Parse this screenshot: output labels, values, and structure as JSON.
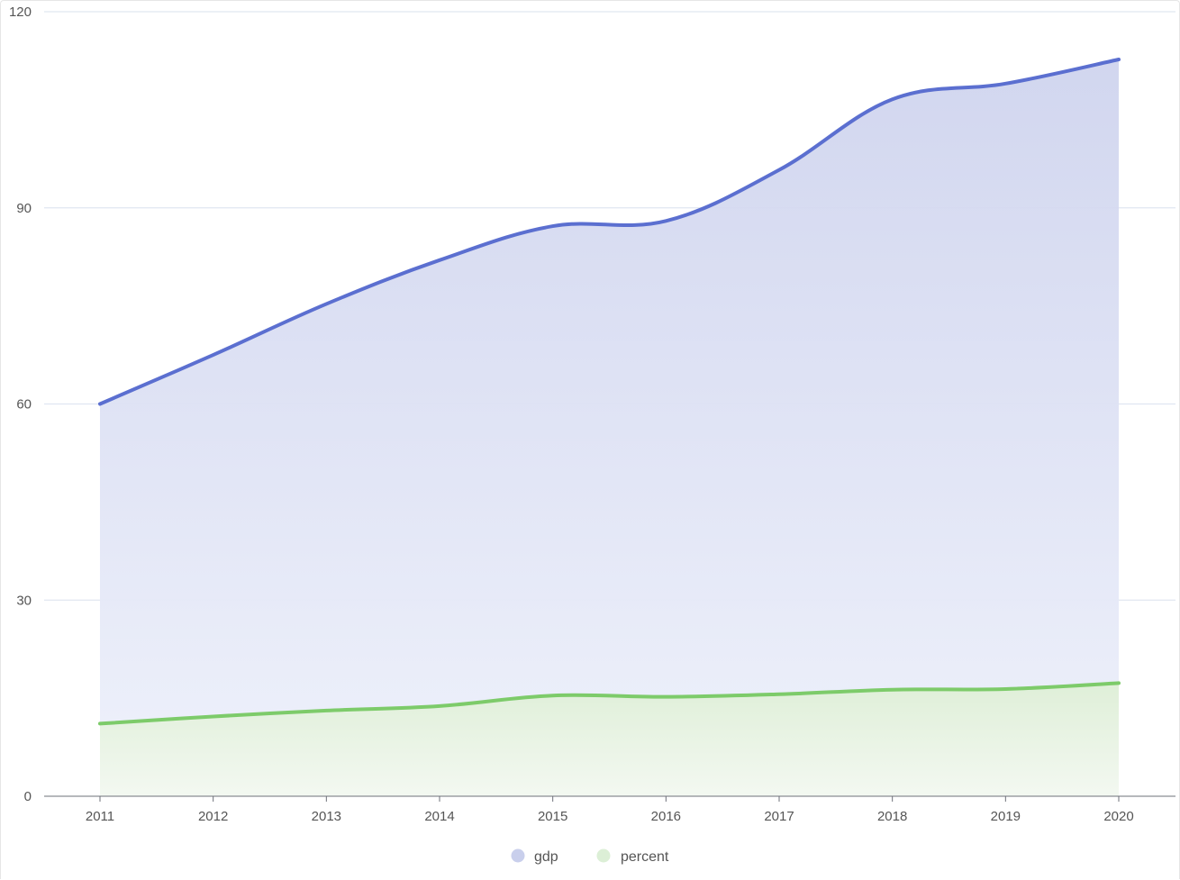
{
  "chart_data": {
    "type": "area",
    "x": [
      "2011",
      "2012",
      "2013",
      "2014",
      "2015",
      "2016",
      "2017",
      "2018",
      "2019",
      "2020"
    ],
    "series": [
      {
        "name": "gdp",
        "values": [
          60.0,
          67.5,
          75.3,
          82.0,
          87.2,
          88.0,
          95.8,
          106.6,
          109.0,
          112.7
        ],
        "line_color": "#5b6fd0",
        "fill_color": "#c9cfec",
        "legend_color": "#c9cfec"
      },
      {
        "name": "percent",
        "values": [
          11.1,
          12.2,
          13.1,
          13.8,
          15.4,
          15.2,
          15.6,
          16.3,
          16.4,
          17.3
        ],
        "line_color": "#7dcb6a",
        "fill_color": "#dcefd6",
        "legend_color": "#dcefd6"
      }
    ],
    "y_ticks": [
      "0",
      "30",
      "60",
      "90",
      "120"
    ],
    "ylim": [
      0,
      120
    ],
    "grid": true,
    "legend": "bottom-center",
    "title": "",
    "xlabel": "",
    "ylabel": ""
  }
}
